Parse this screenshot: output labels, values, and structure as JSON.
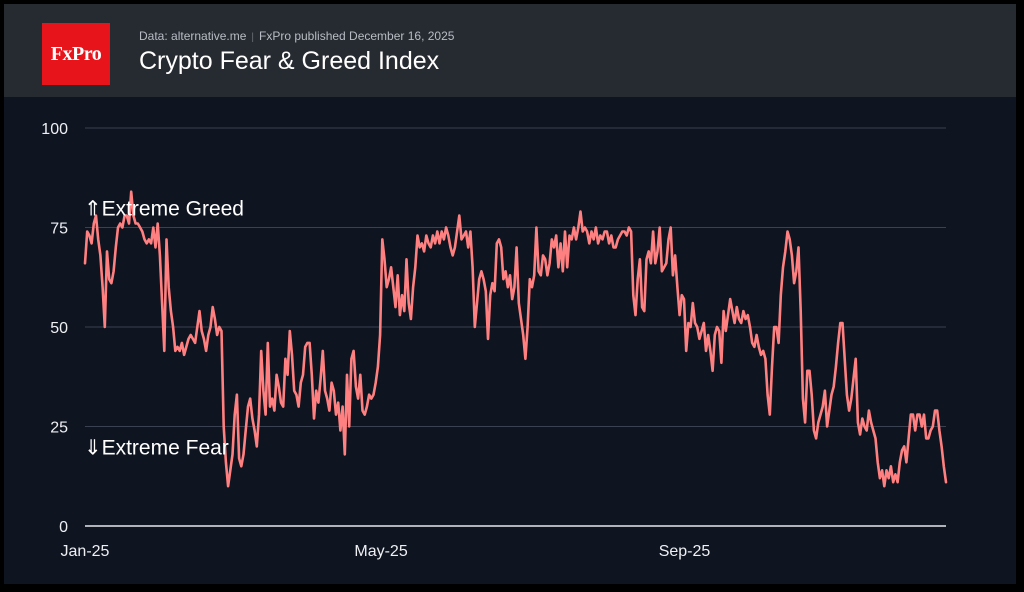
{
  "header": {
    "logo_text": "FxPro",
    "source": "Data: alternative.me",
    "published": "FxPro published December 16, 2025",
    "title": "Crypto Fear & Greed Index"
  },
  "colors": {
    "line": "#ff8080",
    "grid": "#3a4150",
    "background": "#0e1420",
    "header": "#262a31",
    "logo": "#e8141b"
  },
  "chart_data": {
    "type": "line",
    "title": "Crypto Fear & Greed Index",
    "x_start": "2025-01-01",
    "x_end": "2025-12-16",
    "ylim": [
      0,
      100
    ],
    "y_ticks": [
      0,
      25,
      50,
      75,
      100
    ],
    "x_ticks": [
      {
        "date": "2025-01-01",
        "label": "Jan-25"
      },
      {
        "date": "2025-05-01",
        "label": "May-25"
      },
      {
        "date": "2025-09-01",
        "label": "Sep-25"
      }
    ],
    "grid": true,
    "annotations": [
      {
        "text": "⇑Extreme Greed",
        "value": 80
      },
      {
        "text": "⇓Extreme Fear",
        "value": 20
      }
    ],
    "series": [
      {
        "values": [
          66,
          74,
          73,
          71,
          76,
          78,
          72,
          68,
          60,
          50,
          69,
          62,
          61,
          64,
          70,
          75,
          76,
          75,
          78,
          78,
          76,
          84,
          78,
          76,
          76,
          75,
          74,
          72,
          71,
          72,
          71,
          75,
          70,
          76,
          68,
          56,
          44,
          72,
          60,
          54,
          50,
          44,
          45,
          44,
          46,
          43,
          45,
          47,
          48,
          47,
          46,
          50,
          54,
          49,
          47,
          44,
          48,
          50,
          55,
          52,
          48,
          50,
          49,
          25,
          16,
          10,
          14,
          18,
          28,
          33,
          17,
          15,
          18,
          24,
          30,
          32,
          27,
          24,
          20,
          28,
          44,
          34,
          28,
          46,
          30,
          32,
          29,
          38,
          35,
          31,
          30,
          42,
          38,
          49,
          43,
          34,
          33,
          30,
          36,
          38,
          45,
          46,
          46,
          38,
          27,
          34,
          31,
          37,
          44,
          34,
          32,
          29,
          36,
          34,
          28,
          31,
          24,
          30,
          18,
          38,
          25,
          42,
          44,
          35,
          32,
          38,
          29,
          28,
          30,
          33,
          32,
          33,
          36,
          40,
          48,
          72,
          67,
          60,
          62,
          65,
          60,
          55,
          63,
          53,
          58,
          54,
          67,
          56,
          52,
          60,
          65,
          73,
          70,
          71,
          69,
          73,
          71,
          70,
          73,
          71,
          74,
          71,
          74,
          72,
          75,
          73,
          70,
          68,
          70,
          74,
          78,
          72,
          73,
          74,
          70,
          74,
          65,
          50,
          56,
          62,
          64,
          62,
          59,
          47,
          58,
          61,
          59,
          71,
          72,
          70,
          62,
          64,
          60,
          63,
          57,
          60,
          70,
          56,
          52,
          48,
          42,
          50,
          62,
          60,
          63,
          75,
          64,
          63,
          68,
          67,
          63,
          66,
          72,
          70,
          73,
          65,
          71,
          64,
          74,
          65,
          73,
          72,
          75,
          72,
          75,
          79,
          74,
          75,
          74,
          71,
          74,
          72,
          75,
          71,
          73,
          72,
          74,
          74,
          71,
          73,
          70,
          70,
          72,
          73,
          74,
          74,
          73,
          75,
          74,
          58,
          53,
          62,
          67,
          55,
          54,
          67,
          69,
          66,
          74,
          66,
          69,
          75,
          64,
          65,
          66,
          72,
          75,
          63,
          68,
          60,
          53,
          58,
          57,
          44,
          51,
          50,
          56,
          51,
          50,
          47,
          49,
          51,
          44,
          48,
          44,
          39,
          48,
          50,
          49,
          41,
          54,
          49,
          53,
          57,
          54,
          51,
          55,
          52,
          51,
          54,
          52,
          53,
          50,
          46,
          45,
          48,
          45,
          43,
          44,
          42,
          33,
          28,
          40,
          50,
          50,
          46,
          58,
          65,
          69,
          74,
          72,
          68,
          61,
          64,
          70,
          54,
          32,
          26,
          39,
          39,
          33,
          24,
          22,
          26,
          28,
          30,
          34,
          25,
          29,
          33,
          35,
          40,
          46,
          51,
          51,
          42,
          33,
          29,
          32,
          37,
          42,
          26,
          23,
          27,
          25,
          24,
          29,
          26,
          24,
          22,
          16,
          12,
          14,
          10,
          14,
          12,
          15,
          11,
          13,
          11,
          16,
          19,
          20,
          16,
          22,
          28,
          28,
          24,
          28,
          28,
          25,
          28,
          22,
          22,
          24,
          25,
          29,
          29,
          24,
          20,
          15,
          11
        ]
      }
    ]
  }
}
